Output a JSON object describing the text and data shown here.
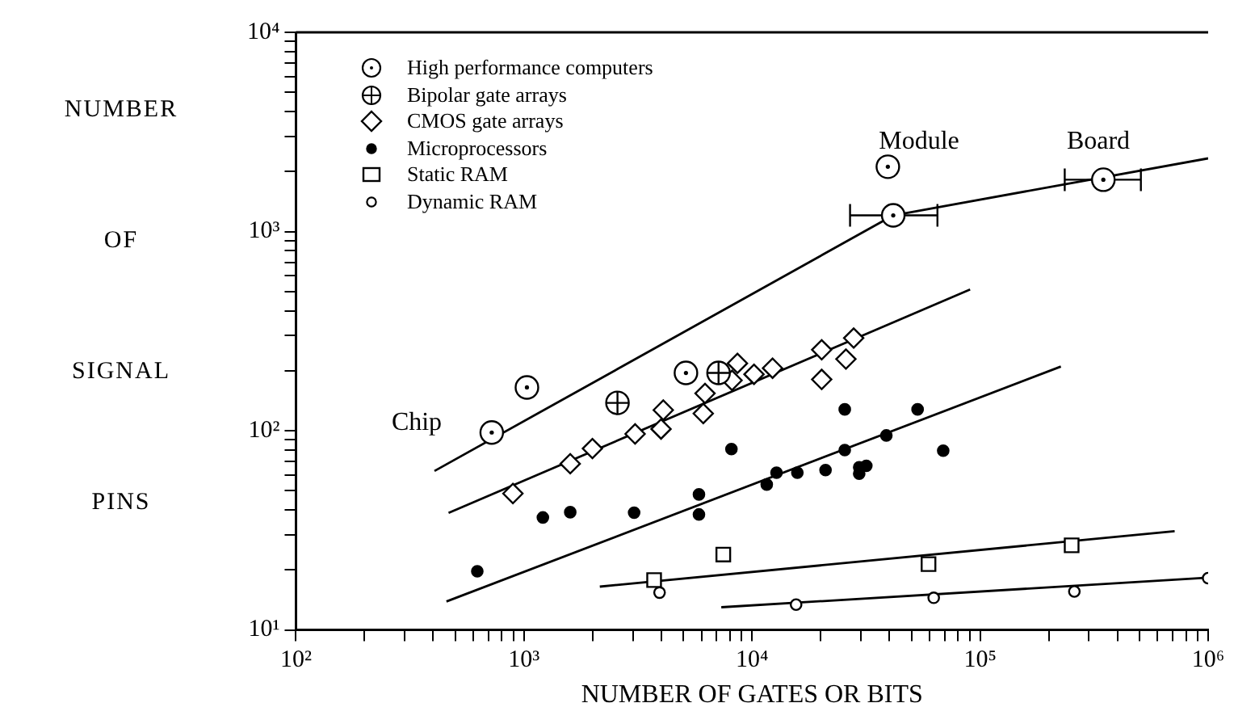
{
  "chart_data": {
    "type": "scatter",
    "xlabel": "NUMBER OF GATES OR BITS",
    "ylabel": "NUMBER OF SIGNAL PINS",
    "log": "xy",
    "grid": false,
    "legend": "top left",
    "xlim": [
      100,
      1000000
    ],
    "ylim": [
      10,
      10000
    ],
    "xticks": [
      {
        "value": 100,
        "label": "10²"
      },
      {
        "value": 200,
        "label": null
      },
      {
        "value": 300,
        "label": null
      },
      {
        "value": 400,
        "label": null
      },
      {
        "value": 500,
        "label": null
      },
      {
        "value": 600,
        "label": null
      },
      {
        "value": 700,
        "label": null
      },
      {
        "value": 800,
        "label": null
      },
      {
        "value": 900,
        "label": null
      },
      {
        "value": 1000,
        "label": "10³"
      },
      {
        "value": 2000,
        "label": null
      },
      {
        "value": 3000,
        "label": null
      },
      {
        "value": 4000,
        "label": null
      },
      {
        "value": 5000,
        "label": null
      },
      {
        "value": 6000,
        "label": null
      },
      {
        "value": 7000,
        "label": null
      },
      {
        "value": 8000,
        "label": null
      },
      {
        "value": 9000,
        "label": null
      },
      {
        "value": 10000,
        "label": "10⁴"
      },
      {
        "value": 20000,
        "label": null
      },
      {
        "value": 30000,
        "label": null
      },
      {
        "value": 40000,
        "label": null
      },
      {
        "value": 50000,
        "label": null
      },
      {
        "value": 60000,
        "label": null
      },
      {
        "value": 70000,
        "label": null
      },
      {
        "value": 80000,
        "label": null
      },
      {
        "value": 90000,
        "label": null
      },
      {
        "value": 100000,
        "label": "10⁵"
      },
      {
        "value": 200000,
        "label": null
      },
      {
        "value": 300000,
        "label": null
      },
      {
        "value": 400000,
        "label": null
      },
      {
        "value": 500000,
        "label": null
      },
      {
        "value": 600000,
        "label": null
      },
      {
        "value": 700000,
        "label": null
      },
      {
        "value": 800000,
        "label": null
      },
      {
        "value": 900000,
        "label": null
      },
      {
        "value": 1000000,
        "label": "10⁶"
      }
    ],
    "yticks": [
      {
        "value": 10,
        "label": "10¹"
      },
      {
        "value": 20,
        "label": null
      },
      {
        "value": 30,
        "label": null
      },
      {
        "value": 40,
        "label": null
      },
      {
        "value": 50,
        "label": null
      },
      {
        "value": 60,
        "label": null
      },
      {
        "value": 70,
        "label": null
      },
      {
        "value": 80,
        "label": null
      },
      {
        "value": 90,
        "label": null
      },
      {
        "value": 100,
        "label": "10²"
      },
      {
        "value": 200,
        "label": null
      },
      {
        "value": 300,
        "label": null
      },
      {
        "value": 400,
        "label": null
      },
      {
        "value": 500,
        "label": null
      },
      {
        "value": 600,
        "label": null
      },
      {
        "value": 700,
        "label": null
      },
      {
        "value": 800,
        "label": null
      },
      {
        "value": 900,
        "label": null
      },
      {
        "value": 1000,
        "label": "10³"
      },
      {
        "value": 2000,
        "label": null
      },
      {
        "value": 3000,
        "label": null
      },
      {
        "value": 4000,
        "label": null
      },
      {
        "value": 5000,
        "label": null
      },
      {
        "value": 6000,
        "label": null
      },
      {
        "value": 7000,
        "label": null
      },
      {
        "value": 8000,
        "label": null
      },
      {
        "value": 9000,
        "label": null
      },
      {
        "value": 10000,
        "label": "10⁴"
      }
    ],
    "annotations": [
      "Chip",
      "Module",
      "Board"
    ],
    "series": [
      {
        "name": "High performance computers",
        "color": "#000000",
        "marker": "circle",
        "x": [
          722,
          1030,
          5130,
          39400,
          41600,
          347000
        ],
        "values": [
          98,
          165,
          195,
          2115,
          1205,
          1820
        ],
        "xerrors": [
          null,
          null,
          null,
          null,
          [
            26900,
            65000
          ],
          [
            235000,
            507000
          ]
        ]
      },
      {
        "name": "Bipolar gate arrays",
        "color": "#000000",
        "marker": "circle",
        "x": [
          2570,
          7130
        ],
        "values": [
          138,
          195
        ]
      },
      {
        "name": "CMOS gate arrays",
        "color": "#000000",
        "marker": "diamond",
        "x": [
          894,
          1595,
          1995,
          3070,
          3990,
          4080,
          6220,
          6110,
          8170,
          8630,
          10200,
          12300,
          20200,
          27900,
          25800,
          20200
        ],
        "values": [
          48.4,
          68.3,
          81.4,
          96.4,
          102,
          127,
          154,
          122,
          179,
          218,
          192,
          206,
          255,
          292,
          229,
          181
        ]
      },
      {
        "name": "Microprocessors",
        "color": "#000000",
        "marker": "circle",
        "x": [
          624,
          1210,
          1595,
          3040,
          5850,
          5850,
          8120,
          11600,
          12800,
          15800,
          21000,
          25500,
          25500,
          29500,
          31700,
          29500,
          38800,
          53200,
          68900
        ],
        "values": [
          19.7,
          36.7,
          39.0,
          38.8,
          47.9,
          38.0,
          80.9,
          53.7,
          61.6,
          61.6,
          63.5,
          80,
          128,
          65.5,
          66.7,
          60.9,
          94.7,
          128,
          79.4
        ]
      },
      {
        "name": "Static RAM",
        "color": "#000000",
        "marker": "square",
        "x": [
          3720,
          7480,
          59400,
          252000
        ],
        "values": [
          17.8,
          23.9,
          21.4,
          26.6
        ]
      },
      {
        "name": "Dynamic RAM",
        "color": "#000000",
        "marker": "circle",
        "x": [
          3930,
          15600,
          62600,
          259000,
          1000000
        ],
        "values": [
          15.4,
          13.4,
          14.5,
          15.6,
          18.2
        ]
      },
      {
        "type": "line",
        "color": "#000000",
        "marker": "none",
        "x": [
          405,
          41600,
          1000000
        ],
        "values": [
          62.8,
          1205,
          2330
        ]
      },
      {
        "type": "line",
        "color": "#000000",
        "marker": "none",
        "x": [
          467,
          90400
        ],
        "values": [
          38.7,
          512
        ]
      },
      {
        "type": "line",
        "color": "#000000",
        "marker": "none",
        "x": [
          457,
          226000
        ],
        "values": [
          13.9,
          210
        ]
      },
      {
        "type": "line",
        "color": "#000000",
        "marker": "none",
        "x": [
          2150,
          713000
        ],
        "values": [
          16.5,
          31.3
        ]
      },
      {
        "type": "line",
        "color": "#000000",
        "marker": "none",
        "x": [
          7330,
          1000000
        ],
        "values": [
          13.0,
          18.3
        ]
      }
    ]
  }
}
